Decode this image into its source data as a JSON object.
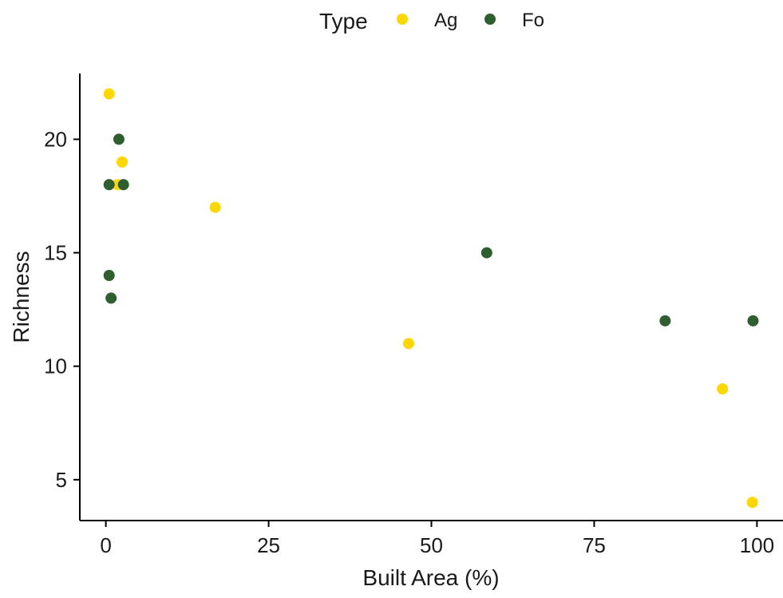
{
  "chart_data": {
    "type": "scatter",
    "xlabel": "Built Area (%)",
    "ylabel": "Richness",
    "xlim": [
      -4,
      104
    ],
    "ylim": [
      3.2,
      22.9
    ],
    "x_ticks": [
      0,
      25,
      50,
      75,
      100
    ],
    "y_ticks": [
      5,
      10,
      15,
      20
    ],
    "grid": false,
    "legend": {
      "title": "Type",
      "position": "top"
    },
    "series": [
      {
        "name": "Ag",
        "color": "#FFD700",
        "points": [
          {
            "x": 0.5,
            "y": 22
          },
          {
            "x": 2.5,
            "y": 19
          },
          {
            "x": 1.8,
            "y": 18
          },
          {
            "x": 16.8,
            "y": 17
          },
          {
            "x": 46.5,
            "y": 11
          },
          {
            "x": 94.7,
            "y": 9
          },
          {
            "x": 99.3,
            "y": 4
          }
        ]
      },
      {
        "name": "Fo",
        "color": "#2F5E2F",
        "points": [
          {
            "x": 2.0,
            "y": 20
          },
          {
            "x": 0.5,
            "y": 18
          },
          {
            "x": 2.7,
            "y": 18
          },
          {
            "x": 58.5,
            "y": 15
          },
          {
            "x": 0.5,
            "y": 14
          },
          {
            "x": 0.8,
            "y": 13
          },
          {
            "x": 85.9,
            "y": 12
          },
          {
            "x": 99.4,
            "y": 12
          }
        ]
      }
    ]
  }
}
